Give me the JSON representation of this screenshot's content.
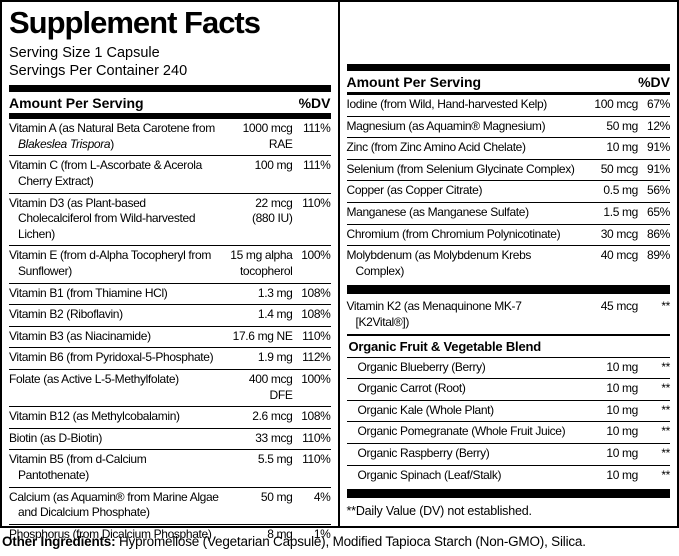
{
  "title": "Supplement Facts",
  "serving_size": "Serving Size 1 Capsule",
  "servings_per_container": "Servings Per Container 240",
  "colors": {
    "text": "#000000",
    "background": "#ffffff",
    "rule": "#000000"
  },
  "left": {
    "header": {
      "amount": "Amount Per Serving",
      "dv": "%DV"
    },
    "rows": [
      {
        "name_pre": "Vitamin A (as Natural Beta Carotene from ",
        "name_italic": "Blakeslea Trispora",
        "name_post": ")",
        "amount": "1000 mcg\nRAE",
        "dv": "111%"
      },
      {
        "name": "Vitamin C (from L-Ascorbate & Acerola Cherry Extract)",
        "amount": "100 mg",
        "dv": "111%"
      },
      {
        "name": "Vitamin D3 (as Plant-based Cholecalciferol from Wild-harvested Lichen)",
        "amount": "22 mcg\n(880 IU)",
        "dv": "110%"
      },
      {
        "name": "Vitamin E (from d-Alpha Tocopheryl from Sunflower)",
        "amount": "15 mg alpha\ntocopherol",
        "dv": "100%"
      },
      {
        "name": "Vitamin B1 (from Thiamine HCl)",
        "amount": "1.3 mg",
        "dv": "108%"
      },
      {
        "name": "Vitamin B2 (Riboflavin)",
        "amount": "1.4 mg",
        "dv": "108%"
      },
      {
        "name": "Vitamin B3 (as Niacinamide)",
        "amount": "17.6 mg NE",
        "dv": "110%"
      },
      {
        "name": "Vitamin B6 (from Pyridoxal-5-Phosphate)",
        "amount": "1.9 mg",
        "dv": "112%"
      },
      {
        "name": "Folate (as Active L-5-Methylfolate)",
        "amount": "400 mcg\nDFE",
        "dv": "100%"
      },
      {
        "name": "Vitamin B12 (as Methylcobalamin)",
        "amount": "2.6 mcg",
        "dv": "108%"
      },
      {
        "name": "Biotin (as D-Biotin)",
        "amount": "33 mcg",
        "dv": "110%"
      },
      {
        "name": "Vitamin B5 (from d-Calcium Pantothenate)",
        "amount": "5.5 mg",
        "dv": "110%"
      },
      {
        "name": "Calcium (as Aquamin® from Marine Algae and Dicalcium Phosphate)",
        "amount": "50 mg",
        "dv": "4%"
      },
      {
        "name": "Phosphorus (from Dicalcium Phosphate)",
        "amount": "8 mg",
        "dv": "1%"
      }
    ]
  },
  "right": {
    "header": {
      "amount": "Amount Per Serving",
      "dv": "%DV"
    },
    "mineral_rows": [
      {
        "name": "Iodine (from Wild, Hand-harvested Kelp)",
        "amount": "100 mcg",
        "dv": "67%"
      },
      {
        "name": "Magnesium (as Aquamin® Magnesium)",
        "amount": "50 mg",
        "dv": "12%"
      },
      {
        "name": "Zinc (from Zinc Amino Acid Chelate)",
        "amount": "10 mg",
        "dv": "91%"
      },
      {
        "name": "Selenium (from Selenium Glycinate Complex)",
        "amount": "50 mcg",
        "dv": "91%"
      },
      {
        "name": "Copper (as Copper Citrate)",
        "amount": "0.5 mg",
        "dv": "56%"
      },
      {
        "name": "Manganese (as Manganese Sulfate)",
        "amount": "1.5 mg",
        "dv": "65%"
      },
      {
        "name": "Chromium (from Chromium Polynicotinate)",
        "amount": "30 mcg",
        "dv": "86%"
      },
      {
        "name": "Molybdenum (as Molybdenum Krebs Complex)",
        "amount": "40 mcg",
        "dv": "89%"
      }
    ],
    "k2_rows": [
      {
        "name": "Vitamin K2 (as Menaquinone MK-7 [K2Vital®])",
        "amount": "45 mcg",
        "dv": "**"
      }
    ],
    "blend": {
      "header": "Organic Fruit & Vegetable Blend",
      "rows": [
        {
          "indent": true,
          "name": "Organic Blueberry (Berry)",
          "amount": "10 mg",
          "dv": "**"
        },
        {
          "indent": true,
          "name": "Organic Carrot (Root)",
          "amount": "10 mg",
          "dv": "**"
        },
        {
          "indent": true,
          "name": "Organic Kale (Whole Plant)",
          "amount": "10 mg",
          "dv": "**"
        },
        {
          "indent": true,
          "name": "Organic Pomegranate (Whole Fruit Juice)",
          "amount": "10 mg",
          "dv": "**"
        },
        {
          "indent": true,
          "name": "Organic Raspberry (Berry)",
          "amount": "10 mg",
          "dv": "**"
        },
        {
          "indent": true,
          "name": "Organic Spinach (Leaf/Stalk)",
          "amount": "10 mg",
          "dv": "**"
        }
      ]
    },
    "footnote": "**Daily Value (DV) not established."
  },
  "other_ingredients": {
    "label": "Other Ingredients:",
    "text": " Hypromellose (Vegetarian Capsule), Modified Tapioca Starch (Non-GMO), Silica."
  }
}
